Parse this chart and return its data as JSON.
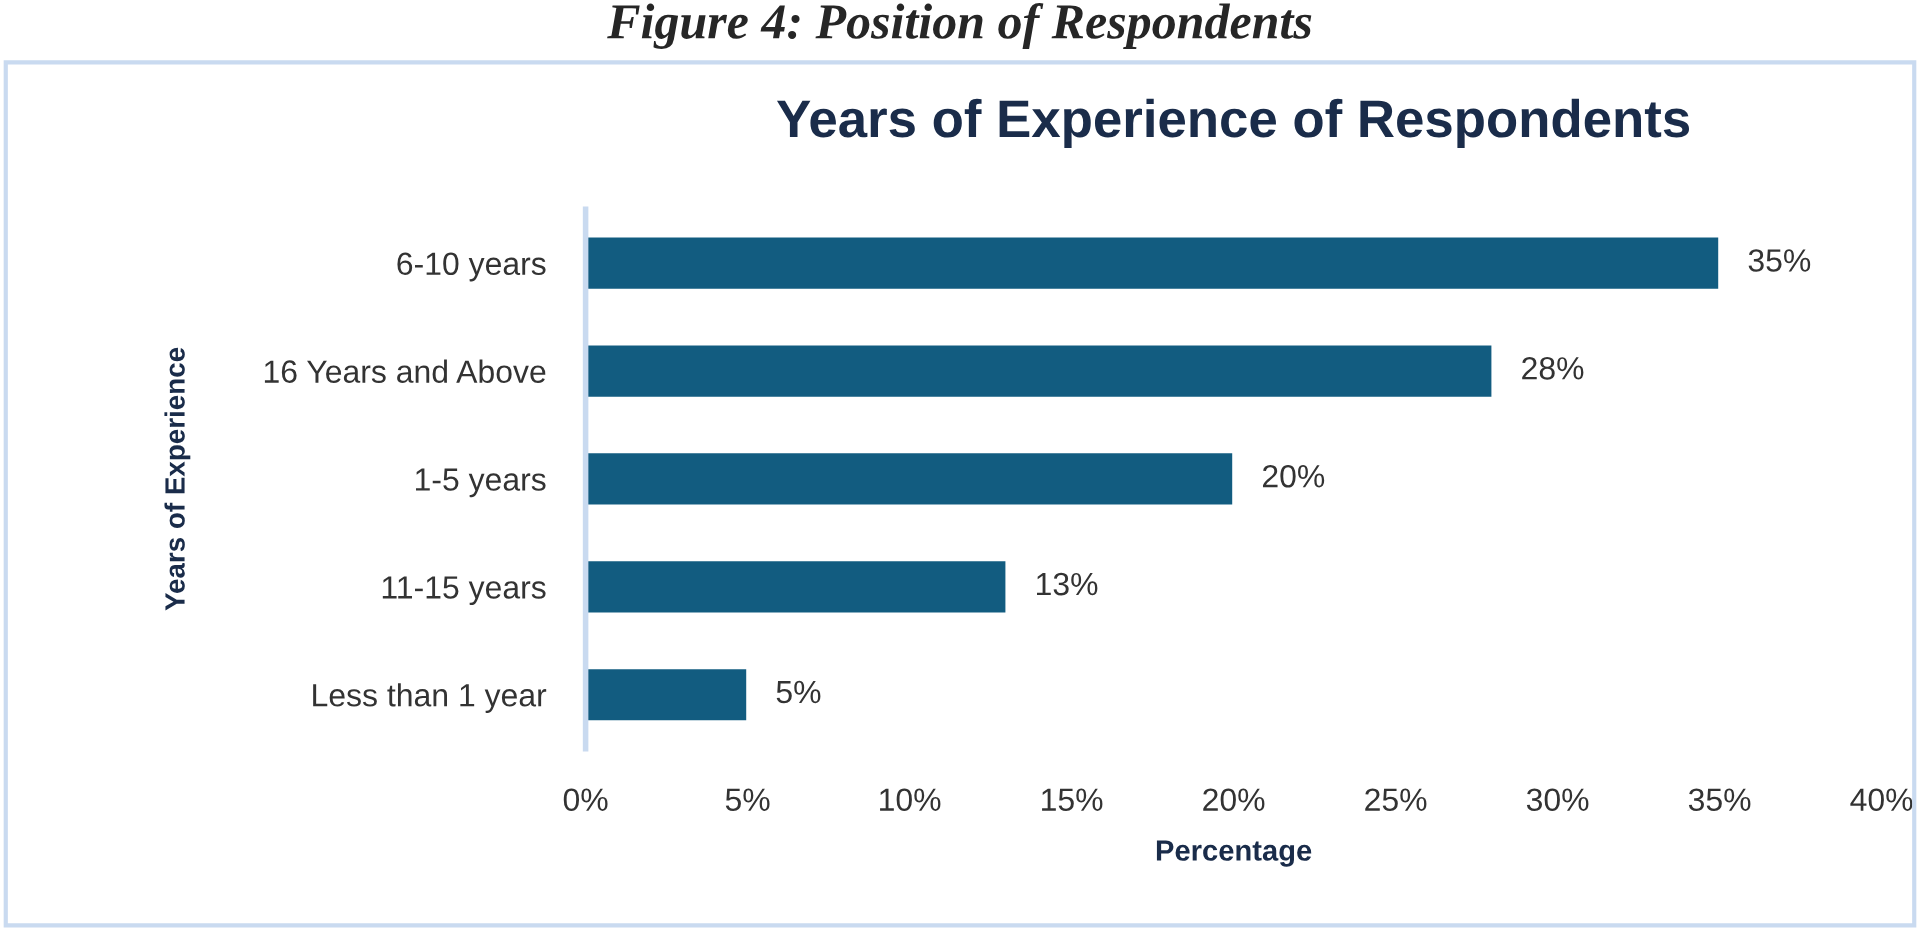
{
  "chart_data": {
    "type": "bar",
    "orientation": "horizontal",
    "title": "Years of Experience of Respondents",
    "xlabel": "Percentage",
    "ylabel": "Years of Experience",
    "annotations": [
      "Figure 4: Position of Respondents"
    ],
    "categories": [
      "6-10 years",
      "16 Years and Above",
      "1-5 years",
      "11-15 years",
      "Less than 1 year"
    ],
    "values": [
      35,
      28,
      20,
      13,
      5
    ],
    "value_labels": [
      "35%",
      "28%",
      "20%",
      "13%",
      "5%"
    ],
    "color": "#125c80",
    "xlim": [
      0,
      40
    ],
    "xticks": [
      {
        "value": 0,
        "label": "0%"
      },
      {
        "value": 5,
        "label": "5%"
      },
      {
        "value": 10,
        "label": "10%"
      },
      {
        "value": 15,
        "label": "15%"
      },
      {
        "value": 20,
        "label": "20%"
      },
      {
        "value": 25,
        "label": "25%"
      },
      {
        "value": 30,
        "label": "30%"
      },
      {
        "value": 35,
        "label": "35%"
      },
      {
        "value": 40,
        "label": "40%"
      }
    ],
    "grid": false
  }
}
